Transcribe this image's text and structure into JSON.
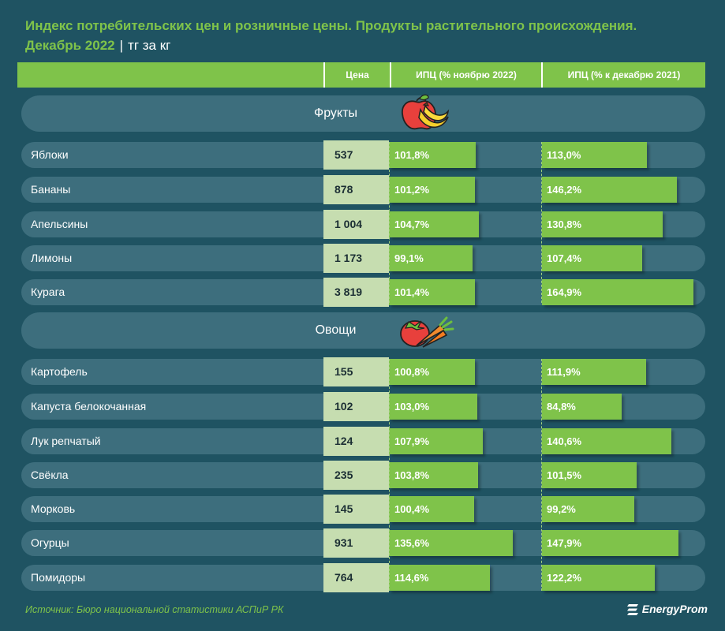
{
  "header": {
    "title_line1": "Индекс потребительских цен и розничные цены. Продукты растительного происхождения.",
    "title_line2": "Декабрь 2022",
    "title_separator": "|",
    "unit": "тг за кг"
  },
  "columns": {
    "price": "Цена",
    "cpi_mom": "ИПЦ (% ноябрю 2022)",
    "cpi_yoy": "ИПЦ (% к декабрю 2021)"
  },
  "categories": {
    "fruits": "Фрукты",
    "vegetables": "Овощи"
  },
  "chart_data": {
    "type": "table",
    "title": "Индекс потребительских цен и розничные цены. Продукты растительного происхождения. Декабрь 2022 | тг за кг",
    "columns": [
      "Цена",
      "ИПЦ (% ноябрю 2022)",
      "ИПЦ (% к декабрю 2021)"
    ],
    "groups": [
      {
        "name": "Фрукты",
        "rows": [
          {
            "name": "Яблоки",
            "price": "537",
            "price_value": 537,
            "cpi_mom": "101,8%",
            "cpi_mom_value": 101.8,
            "cpi_yoy": "113,0%",
            "cpi_yoy_value": 113.0
          },
          {
            "name": "Бананы",
            "price": "878",
            "price_value": 878,
            "cpi_mom": "101,2%",
            "cpi_mom_value": 101.2,
            "cpi_yoy": "146,2%",
            "cpi_yoy_value": 146.2
          },
          {
            "name": "Апельсины",
            "price": "1 004",
            "price_value": 1004,
            "cpi_mom": "104,7%",
            "cpi_mom_value": 104.7,
            "cpi_yoy": "130,8%",
            "cpi_yoy_value": 130.8
          },
          {
            "name": "Лимоны",
            "price": "1 173",
            "price_value": 1173,
            "cpi_mom": "99,1%",
            "cpi_mom_value": 99.1,
            "cpi_yoy": "107,4%",
            "cpi_yoy_value": 107.4
          },
          {
            "name": "Курага",
            "price": "3 819",
            "price_value": 3819,
            "cpi_mom": "101,4%",
            "cpi_mom_value": 101.4,
            "cpi_yoy": "164,9%",
            "cpi_yoy_value": 164.9
          }
        ]
      },
      {
        "name": "Овощи",
        "rows": [
          {
            "name": "Картофель",
            "price": "155",
            "price_value": 155,
            "cpi_mom": "100,8%",
            "cpi_mom_value": 100.8,
            "cpi_yoy": "111,9%",
            "cpi_yoy_value": 111.9
          },
          {
            "name": "Капуста белокочанная",
            "price": "102",
            "price_value": 102,
            "cpi_mom": "103,0%",
            "cpi_mom_value": 103.0,
            "cpi_yoy": "84,8%",
            "cpi_yoy_value": 84.8
          },
          {
            "name": "Лук репчатый",
            "price": "124",
            "price_value": 124,
            "cpi_mom": "107,9%",
            "cpi_mom_value": 107.9,
            "cpi_yoy": "140,6%",
            "cpi_yoy_value": 140.6
          },
          {
            "name": "Свёкла",
            "price": "235",
            "price_value": 235,
            "cpi_mom": "103,8%",
            "cpi_mom_value": 103.8,
            "cpi_yoy": "101,5%",
            "cpi_yoy_value": 101.5
          },
          {
            "name": "Морковь",
            "price": "145",
            "price_value": 145,
            "cpi_mom": "100,4%",
            "cpi_mom_value": 100.4,
            "cpi_yoy": "99,2%",
            "cpi_yoy_value": 99.2
          },
          {
            "name": "Огурцы",
            "price": "931",
            "price_value": 931,
            "cpi_mom": "135,6%",
            "cpi_mom_value": 135.6,
            "cpi_yoy": "147,9%",
            "cpi_yoy_value": 147.9
          },
          {
            "name": "Помидоры",
            "price": "764",
            "price_value": 764,
            "cpi_mom": "114,6%",
            "cpi_mom_value": 114.6,
            "cpi_yoy": "122,2%",
            "cpi_yoy_value": 122.2
          }
        ]
      }
    ]
  },
  "footer": {
    "source": "Источник: Бюро национальной статистики АСПиР РК",
    "logo": "EnergyProm"
  },
  "icons": {
    "fruits": "fruit-icon",
    "vegetables": "vegetable-icon",
    "logo": "energyprom-logo-icon"
  },
  "colors": {
    "background": "#1f5362",
    "row": "#3d6e7d",
    "accent": "#7fc34a",
    "price_cell": "#c6ddb0"
  }
}
